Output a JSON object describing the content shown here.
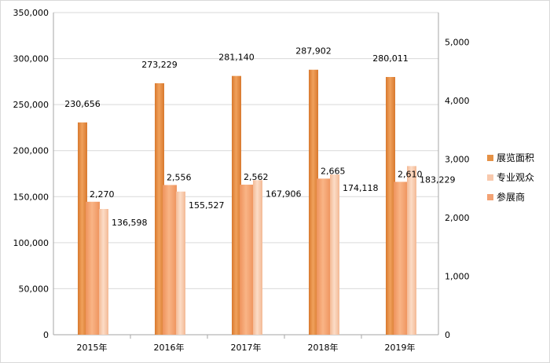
{
  "chart_data": {
    "type": "bar",
    "categories": [
      "2015年",
      "2016年",
      "2017年",
      "2018年",
      "2019年"
    ],
    "series": [
      {
        "name": "展览面积",
        "axis": "left",
        "values": [
          230656,
          273229,
          281140,
          287902,
          280011
        ],
        "labels": [
          "230,656",
          "273,229",
          "281,140",
          "287,902",
          "280,011"
        ],
        "color": "#E59145"
      },
      {
        "name": "专业观众",
        "axis": "left",
        "values": [
          136598,
          155527,
          167906,
          174118,
          183229
        ],
        "labels": [
          "136,598",
          "155,527",
          "167,906",
          "174,118",
          "183,229"
        ],
        "color": "#F8C9AD"
      },
      {
        "name": "参展商",
        "axis": "right",
        "values": [
          2270,
          2556,
          2562,
          2665,
          2610
        ],
        "labels": [
          "2,270",
          "2,556",
          "2,562",
          "2,665",
          "2,610"
        ],
        "color": "#F3A274"
      }
    ],
    "left_axis": {
      "min": 0,
      "max": 350000,
      "step": 50000,
      "tick_labels": [
        "0",
        "50,000",
        "100,000",
        "150,000",
        "200,000",
        "250,000",
        "300,000",
        "350,000"
      ]
    },
    "right_axis": {
      "min": 0,
      "max": 5500,
      "step": 1000,
      "tick_labels": [
        "0",
        "1,000",
        "2,000",
        "3,000",
        "4,000",
        "5,000"
      ]
    },
    "grid": true,
    "legend": {
      "position": "right",
      "items": [
        "展览面积",
        "专业观众",
        "参展商"
      ]
    },
    "title": "",
    "xlabel": "",
    "ylabel": ""
  }
}
